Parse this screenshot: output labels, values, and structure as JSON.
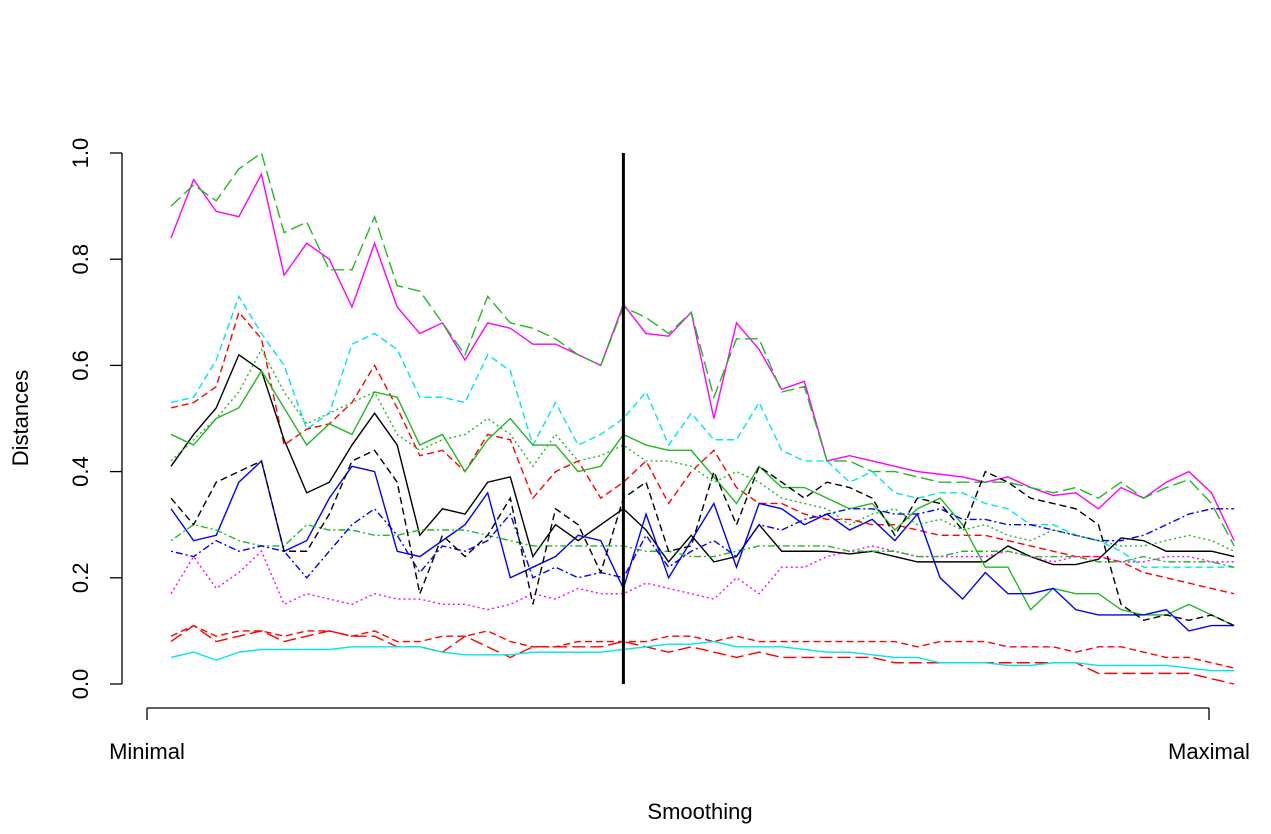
{
  "chart_data": {
    "type": "line",
    "xlabel": "Smoothing",
    "ylabel": "Distances",
    "x_tick_labels": [
      "Minimal",
      "Maximal"
    ],
    "ylim": [
      0,
      1
    ],
    "yticks": [
      {
        "value": 0,
        "label": "0.0"
      },
      0.2,
      0.4,
      0.6,
      0.8,
      {
        "value": 1,
        "label": "1.0"
      }
    ],
    "vline_x": 20,
    "series": [
      {
        "color": "#ff00ff",
        "dash": "solid",
        "values": [
          0.84,
          0.95,
          0.89,
          0.88,
          0.96,
          0.77,
          0.83,
          0.8,
          0.71,
          0.83,
          0.71,
          0.66,
          0.68,
          0.61,
          0.68,
          0.67,
          0.64,
          0.64,
          0.62,
          0.6,
          0.715,
          0.66,
          0.655,
          0.7,
          0.5,
          0.68,
          0.63,
          0.555,
          0.57,
          0.42,
          0.43,
          0.42,
          0.41,
          0.4,
          0.395,
          0.39,
          0.38,
          0.39,
          0.37,
          0.355,
          0.36,
          0.33,
          0.37,
          0.35,
          0.38,
          0.4,
          0.36,
          0.27
        ]
      },
      {
        "color": "#22b822",
        "dash": "longdash",
        "values": [
          0.9,
          0.94,
          0.91,
          0.97,
          1.0,
          0.85,
          0.87,
          0.78,
          0.78,
          0.88,
          0.75,
          0.74,
          0.68,
          0.62,
          0.73,
          0.68,
          0.67,
          0.65,
          0.62,
          0.6,
          0.71,
          0.69,
          0.66,
          0.7,
          0.54,
          0.65,
          0.65,
          0.55,
          0.56,
          0.42,
          0.42,
          0.4,
          0.4,
          0.39,
          0.38,
          0.38,
          0.38,
          0.38,
          0.37,
          0.36,
          0.37,
          0.35,
          0.38,
          0.35,
          0.37,
          0.385,
          0.34,
          0.26
        ]
      },
      {
        "color": "#00e5ee",
        "dash": "dashed",
        "values": [
          0.53,
          0.54,
          0.61,
          0.73,
          0.66,
          0.6,
          0.48,
          0.51,
          0.64,
          0.66,
          0.63,
          0.54,
          0.54,
          0.53,
          0.62,
          0.59,
          0.45,
          0.53,
          0.45,
          0.47,
          0.5,
          0.55,
          0.45,
          0.51,
          0.46,
          0.46,
          0.53,
          0.44,
          0.42,
          0.42,
          0.38,
          0.4,
          0.36,
          0.35,
          0.36,
          0.36,
          0.34,
          0.33,
          0.3,
          0.3,
          0.28,
          0.27,
          0.25,
          0.22,
          0.22,
          0.22,
          0.22,
          0.22
        ]
      },
      {
        "color": "#ff0000",
        "dash": "dashed",
        "values": [
          0.52,
          0.53,
          0.56,
          0.7,
          0.65,
          0.45,
          0.48,
          0.49,
          0.53,
          0.6,
          0.52,
          0.43,
          0.44,
          0.4,
          0.47,
          0.46,
          0.35,
          0.4,
          0.42,
          0.35,
          0.38,
          0.42,
          0.34,
          0.4,
          0.44,
          0.37,
          0.34,
          0.34,
          0.32,
          0.31,
          0.31,
          0.3,
          0.3,
          0.29,
          0.28,
          0.28,
          0.28,
          0.27,
          0.26,
          0.25,
          0.24,
          0.24,
          0.23,
          0.21,
          0.2,
          0.19,
          0.18,
          0.17
        ]
      },
      {
        "color": "#000000",
        "dash": "solid",
        "values": [
          0.41,
          0.47,
          0.52,
          0.62,
          0.59,
          0.46,
          0.36,
          0.38,
          0.45,
          0.51,
          0.45,
          0.28,
          0.33,
          0.32,
          0.38,
          0.39,
          0.24,
          0.3,
          0.27,
          0.3,
          0.33,
          0.29,
          0.23,
          0.28,
          0.23,
          0.24,
          0.3,
          0.25,
          0.25,
          0.25,
          0.245,
          0.25,
          0.24,
          0.23,
          0.23,
          0.23,
          0.23,
          0.26,
          0.24,
          0.225,
          0.225,
          0.235,
          0.275,
          0.27,
          0.25,
          0.25,
          0.25,
          0.24
        ]
      },
      {
        "color": "#22b822",
        "dash": "solid",
        "values": [
          0.47,
          0.45,
          0.5,
          0.52,
          0.59,
          0.52,
          0.45,
          0.49,
          0.47,
          0.55,
          0.54,
          0.45,
          0.47,
          0.4,
          0.46,
          0.5,
          0.45,
          0.45,
          0.4,
          0.41,
          0.47,
          0.45,
          0.44,
          0.44,
          0.39,
          0.34,
          0.41,
          0.37,
          0.37,
          0.35,
          0.33,
          0.34,
          0.29,
          0.33,
          0.35,
          0.3,
          0.22,
          0.22,
          0.14,
          0.18,
          0.17,
          0.17,
          0.14,
          0.13,
          0.13,
          0.15,
          0.13,
          0.11
        ]
      },
      {
        "color": "#0000ff",
        "dash": "solid",
        "values": [
          0.33,
          0.27,
          0.28,
          0.38,
          0.42,
          0.25,
          0.27,
          0.35,
          0.41,
          0.4,
          0.25,
          0.24,
          0.27,
          0.3,
          0.36,
          0.2,
          0.22,
          0.24,
          0.28,
          0.27,
          0.18,
          0.32,
          0.2,
          0.27,
          0.34,
          0.22,
          0.34,
          0.33,
          0.3,
          0.32,
          0.29,
          0.31,
          0.27,
          0.32,
          0.2,
          0.16,
          0.21,
          0.17,
          0.17,
          0.18,
          0.14,
          0.13,
          0.13,
          0.13,
          0.14,
          0.1,
          0.11,
          0.11
        ]
      },
      {
        "color": "#ff0000",
        "dash": "dashed",
        "values": [
          0.09,
          0.11,
          0.09,
          0.1,
          0.1,
          0.09,
          0.1,
          0.1,
          0.09,
          0.1,
          0.08,
          0.08,
          0.09,
          0.09,
          0.1,
          0.08,
          0.07,
          0.07,
          0.08,
          0.08,
          0.08,
          0.08,
          0.09,
          0.09,
          0.08,
          0.09,
          0.08,
          0.08,
          0.08,
          0.08,
          0.08,
          0.08,
          0.08,
          0.07,
          0.08,
          0.08,
          0.08,
          0.07,
          0.07,
          0.07,
          0.06,
          0.07,
          0.07,
          0.06,
          0.05,
          0.05,
          0.04,
          0.03
        ]
      },
      {
        "color": "#ff0000",
        "dash": "longdash",
        "values": [
          0.08,
          0.11,
          0.08,
          0.09,
          0.1,
          0.08,
          0.09,
          0.1,
          0.09,
          0.09,
          0.07,
          0.07,
          0.06,
          0.09,
          0.07,
          0.05,
          0.07,
          0.07,
          0.07,
          0.07,
          0.08,
          0.07,
          0.06,
          0.07,
          0.06,
          0.05,
          0.06,
          0.05,
          0.05,
          0.05,
          0.05,
          0.05,
          0.04,
          0.04,
          0.04,
          0.04,
          0.04,
          0.04,
          0.04,
          0.04,
          0.04,
          0.02,
          0.02,
          0.02,
          0.02,
          0.02,
          0.01,
          0.0
        ]
      },
      {
        "color": "#00e5ee",
        "dash": "solid",
        "values": [
          0.05,
          0.06,
          0.045,
          0.06,
          0.065,
          0.065,
          0.065,
          0.065,
          0.07,
          0.07,
          0.07,
          0.07,
          0.06,
          0.055,
          0.055,
          0.055,
          0.06,
          0.06,
          0.06,
          0.06,
          0.065,
          0.07,
          0.075,
          0.075,
          0.08,
          0.07,
          0.07,
          0.07,
          0.065,
          0.06,
          0.06,
          0.055,
          0.05,
          0.05,
          0.04,
          0.04,
          0.04,
          0.035,
          0.035,
          0.04,
          0.04,
          0.035,
          0.035,
          0.035,
          0.035,
          0.03,
          0.025,
          0.025
        ]
      },
      {
        "color": "#ff00ff",
        "dash": "dotted",
        "values": [
          0.17,
          0.24,
          0.18,
          0.21,
          0.25,
          0.15,
          0.17,
          0.16,
          0.15,
          0.17,
          0.16,
          0.16,
          0.15,
          0.15,
          0.14,
          0.15,
          0.17,
          0.16,
          0.18,
          0.17,
          0.17,
          0.19,
          0.18,
          0.17,
          0.16,
          0.2,
          0.17,
          0.22,
          0.22,
          0.24,
          0.25,
          0.26,
          0.25,
          0.24,
          0.24,
          0.24,
          0.24,
          0.25,
          0.24,
          0.23,
          0.24,
          0.24,
          0.23,
          0.23,
          0.24,
          0.24,
          0.23,
          0.23
        ]
      },
      {
        "color": "#22b822",
        "dash": "dotdash",
        "values": [
          0.27,
          0.3,
          0.29,
          0.27,
          0.26,
          0.26,
          0.3,
          0.29,
          0.29,
          0.28,
          0.28,
          0.29,
          0.29,
          0.29,
          0.28,
          0.27,
          0.26,
          0.26,
          0.26,
          0.26,
          0.26,
          0.25,
          0.25,
          0.24,
          0.24,
          0.25,
          0.26,
          0.26,
          0.26,
          0.26,
          0.25,
          0.25,
          0.25,
          0.24,
          0.24,
          0.25,
          0.25,
          0.25,
          0.24,
          0.24,
          0.24,
          0.23,
          0.23,
          0.24,
          0.23,
          0.23,
          0.23,
          0.22
        ]
      },
      {
        "color": "#0000ff",
        "dash": "dotdash",
        "values": [
          0.25,
          0.24,
          0.27,
          0.25,
          0.26,
          0.25,
          0.2,
          0.25,
          0.3,
          0.33,
          0.28,
          0.21,
          0.26,
          0.25,
          0.27,
          0.32,
          0.2,
          0.22,
          0.2,
          0.21,
          0.2,
          0.28,
          0.22,
          0.25,
          0.27,
          0.24,
          0.3,
          0.29,
          0.31,
          0.32,
          0.33,
          0.33,
          0.32,
          0.32,
          0.33,
          0.31,
          0.31,
          0.3,
          0.3,
          0.29,
          0.28,
          0.27,
          0.27,
          0.28,
          0.3,
          0.32,
          0.33,
          0.33
        ]
      },
      {
        "color": "#000000",
        "dash": "dashed",
        "values": [
          0.35,
          0.3,
          0.38,
          0.4,
          0.42,
          0.25,
          0.25,
          0.32,
          0.42,
          0.44,
          0.38,
          0.17,
          0.28,
          0.24,
          0.28,
          0.35,
          0.15,
          0.33,
          0.3,
          0.21,
          0.35,
          0.38,
          0.25,
          0.26,
          0.4,
          0.3,
          0.41,
          0.38,
          0.35,
          0.38,
          0.37,
          0.35,
          0.28,
          0.35,
          0.34,
          0.29,
          0.4,
          0.38,
          0.35,
          0.34,
          0.33,
          0.3,
          0.15,
          0.12,
          0.13,
          0.12,
          0.13,
          0.11
        ]
      },
      {
        "color": "#22b822",
        "dash": "dotted",
        "values": [
          0.42,
          0.46,
          0.5,
          0.55,
          0.63,
          0.55,
          0.49,
          0.51,
          0.53,
          0.55,
          0.47,
          0.44,
          0.46,
          0.47,
          0.5,
          0.47,
          0.41,
          0.47,
          0.42,
          0.43,
          0.45,
          0.42,
          0.42,
          0.41,
          0.38,
          0.4,
          0.38,
          0.35,
          0.34,
          0.33,
          0.3,
          0.32,
          0.33,
          0.3,
          0.31,
          0.29,
          0.3,
          0.28,
          0.27,
          0.29,
          0.28,
          0.27,
          0.26,
          0.26,
          0.27,
          0.28,
          0.27,
          0.25
        ]
      }
    ]
  }
}
